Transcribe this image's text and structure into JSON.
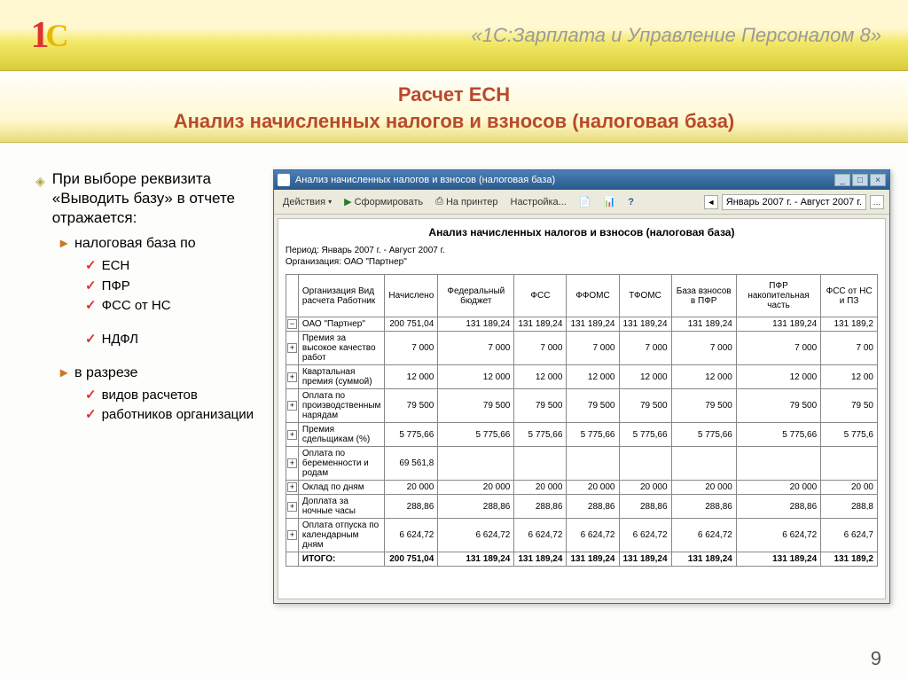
{
  "banner": {
    "logo_1": "1",
    "logo_c": "С",
    "product": "«1С:Зарплата и Управление Персоналом 8»"
  },
  "slide": {
    "title_l1": "Расчет ЕСН",
    "title_l2": "Анализ начисленных налогов и взносов (налоговая база)",
    "page_num": "9"
  },
  "bullets": {
    "b0": "При выборе реквизита «Выводить базу» в отчете отражается:",
    "b1a": "налоговая база по",
    "esn": "ЕСН",
    "pfr": "ПФР",
    "fss": "ФСС от НС",
    "ndfl": "НДФЛ",
    "b1b": "в разрезе",
    "vid": "видов расчетов",
    "rab": "работников организации"
  },
  "window": {
    "title": "Анализ начисленных налогов и взносов (налоговая база)",
    "actions": "Действия",
    "form_btn": "Сформировать",
    "printer": "На принтер",
    "settings": "Настройка...",
    "period": "Январь 2007 г. - Август 2007 г."
  },
  "report": {
    "title": "Анализ начисленных налогов и взносов (налоговая база)",
    "meta1": "Период: Январь 2007 г. - Август 2007 г.",
    "meta2": "Организация: ОАО \"Партнер\"",
    "headers": {
      "c0": "Организация Вид расчета Работник",
      "c1": "Начислено",
      "c2": "Федеральный бюджет",
      "c3": "ФСС",
      "c4": "ФФОМС",
      "c5": "ТФОМС",
      "c6": "База взносов в ПФР",
      "c7": "ПФР накопительная часть",
      "c8": "ФСС от НС и ПЗ"
    },
    "rows": [
      {
        "label": "ОАО \"Партнер\"",
        "v": [
          "200 751,04",
          "131 189,24",
          "131 189,24",
          "131 189,24",
          "131 189,24",
          "131 189,24",
          "131 189,24",
          "131 189,2"
        ],
        "exp": "−"
      },
      {
        "label": "Премия за высокое качество работ",
        "v": [
          "7 000",
          "7 000",
          "7 000",
          "7 000",
          "7 000",
          "7 000",
          "7 000",
          "7 00"
        ],
        "exp": "+"
      },
      {
        "label": "Квартальная премия (суммой)",
        "v": [
          "12 000",
          "12 000",
          "12 000",
          "12 000",
          "12 000",
          "12 000",
          "12 000",
          "12 00"
        ],
        "exp": "+"
      },
      {
        "label": "Оплата по производственным нарядам",
        "v": [
          "79 500",
          "79 500",
          "79 500",
          "79 500",
          "79 500",
          "79 500",
          "79 500",
          "79 50"
        ],
        "exp": "+"
      },
      {
        "label": "Премия сдельщикам (%)",
        "v": [
          "5 775,66",
          "5 775,66",
          "5 775,66",
          "5 775,66",
          "5 775,66",
          "5 775,66",
          "5 775,66",
          "5 775,6"
        ],
        "exp": "+"
      },
      {
        "label": "Оплата по беременности и родам",
        "v": [
          "69 561,8",
          "",
          "",
          "",
          "",
          "",
          "",
          ""
        ],
        "exp": "+"
      },
      {
        "label": "Оклад по дням",
        "v": [
          "20 000",
          "20 000",
          "20 000",
          "20 000",
          "20 000",
          "20 000",
          "20 000",
          "20 00"
        ],
        "exp": "+"
      },
      {
        "label": "Доплата за ночные часы",
        "v": [
          "288,86",
          "288,86",
          "288,86",
          "288,86",
          "288,86",
          "288,86",
          "288,86",
          "288,8"
        ],
        "exp": "+"
      },
      {
        "label": "Оплата отпуска по календарным дням",
        "v": [
          "6 624,72",
          "6 624,72",
          "6 624,72",
          "6 624,72",
          "6 624,72",
          "6 624,72",
          "6 624,72",
          "6 624,7"
        ],
        "exp": "+"
      }
    ],
    "total": {
      "label": "ИТОГО:",
      "v": [
        "200 751,04",
        "131 189,24",
        "131 189,24",
        "131 189,24",
        "131 189,24",
        "131 189,24",
        "131 189,24",
        "131 189,2"
      ]
    }
  },
  "style": {
    "accent_red": "#b84a2a",
    "banner_grad_top": "#fff8d0",
    "banner_grad_bot": "#d9cc3a",
    "titlebar_grad_top": "#4a7fb8",
    "titlebar_grad_bot": "#2a5a8a"
  }
}
